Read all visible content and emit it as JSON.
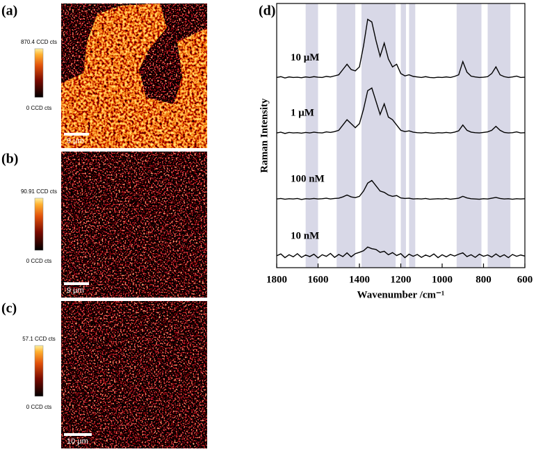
{
  "chart_data": {
    "type": "line",
    "panel_label": "(d)",
    "x_label": "Wavenumber /cm⁻¹",
    "y_label": "Raman Intensity",
    "xlim": [
      1800,
      600
    ],
    "xticks": [
      1800,
      1600,
      1400,
      1200,
      1000,
      800,
      600
    ],
    "ylim": [
      0,
      100
    ],
    "bands": [
      [
        1660,
        1600
      ],
      [
        1510,
        1420
      ],
      [
        1390,
        1225
      ],
      [
        1200,
        1175
      ],
      [
        1160,
        1130
      ],
      [
        930,
        810
      ],
      [
        780,
        670
      ]
    ],
    "band_color": "#d8d8e7",
    "x": [
      1800,
      1780,
      1760,
      1740,
      1720,
      1700,
      1680,
      1660,
      1640,
      1620,
      1600,
      1580,
      1560,
      1540,
      1520,
      1500,
      1480,
      1460,
      1440,
      1420,
      1400,
      1380,
      1360,
      1340,
      1320,
      1300,
      1280,
      1260,
      1240,
      1220,
      1200,
      1180,
      1160,
      1140,
      1120,
      1100,
      1080,
      1060,
      1040,
      1020,
      1000,
      980,
      960,
      940,
      920,
      900,
      880,
      860,
      840,
      820,
      800,
      780,
      760,
      740,
      720,
      700,
      680,
      660,
      640,
      620,
      600
    ],
    "series": [
      {
        "name": "10 μM",
        "color": "#000000",
        "values": [
          72,
          72.3,
          71.8,
          72.2,
          72,
          72.1,
          71.9,
          72.2,
          72,
          72.3,
          72.1,
          72,
          72.4,
          72.2,
          72.6,
          73,
          75,
          77,
          75,
          74.5,
          76,
          84,
          94,
          93,
          86,
          80,
          85,
          79,
          76,
          77,
          73.5,
          72.6,
          73,
          72.4,
          72.2,
          72,
          72.3,
          72,
          71.9,
          72.1,
          72,
          72.2,
          72,
          72.4,
          73,
          78,
          74,
          72.5,
          72.2,
          72,
          72.1,
          72.3,
          73.5,
          76,
          73,
          72.3,
          72,
          72.2,
          72.5,
          72,
          72.1
        ]
      },
      {
        "name": "1 μM",
        "color": "#000000",
        "values": [
          51,
          51.3,
          50.8,
          51.2,
          51,
          51.1,
          50.9,
          51.2,
          51,
          51.3,
          51.1,
          51,
          51.4,
          51.2,
          51.5,
          52,
          54,
          56,
          54.5,
          53,
          54.5,
          60,
          67,
          68,
          63,
          58,
          62,
          57,
          56,
          54,
          52,
          51.5,
          51.8,
          51.3,
          51.1,
          51,
          51.2,
          51,
          50.9,
          51.1,
          51,
          51.2,
          51,
          51.3,
          51.8,
          54,
          52,
          51.3,
          51.1,
          51,
          51.2,
          51.4,
          52,
          53.5,
          52,
          51.2,
          51,
          51.1,
          51.4,
          51,
          51.1
        ]
      },
      {
        "name": "100 nM",
        "color": "#000000",
        "values": [
          26,
          26.2,
          25.9,
          26.1,
          26,
          26.2,
          25.8,
          26.1,
          26,
          26.2,
          26,
          26.1,
          26.3,
          26,
          26.2,
          26.3,
          26.8,
          27.5,
          26.8,
          26.5,
          27,
          29,
          32,
          33,
          31,
          29,
          28.5,
          27.5,
          27,
          27.3,
          26.4,
          26.2,
          26.3,
          26,
          26.1,
          26,
          26.2,
          25.9,
          26,
          26.1,
          26,
          26.2,
          25.9,
          26.1,
          26.3,
          27,
          26.4,
          26.1,
          26,
          25.9,
          26.1,
          26,
          26.3,
          26.6,
          26.2,
          26,
          26.1,
          25.9,
          26.1,
          26,
          26.1
        ]
      },
      {
        "name": "10 nM",
        "color": "#000000",
        "values": [
          4.5,
          5.2,
          3.8,
          4.9,
          4.1,
          5.3,
          3.9,
          4.8,
          4.2,
          5.1,
          3.7,
          4.9,
          4.3,
          5.4,
          3.9,
          5,
          4.2,
          5.6,
          4.1,
          5.3,
          5.8,
          6.4,
          7.8,
          7.2,
          6.9,
          5.8,
          6.2,
          4.9,
          5.7,
          4.6,
          5.3,
          3.8,
          5.1,
          4.3,
          5,
          3.9,
          4.8,
          4.2,
          5.2,
          3.8,
          4.9,
          4.1,
          5,
          4.4,
          5.1,
          5.6,
          4.2,
          4.9,
          3.9,
          5.1,
          4.3,
          4.8,
          4,
          5.2,
          4.1,
          4.9,
          3.8,
          5,
          4.3,
          4.8,
          4.4
        ]
      }
    ]
  },
  "maps": [
    {
      "label": "(a)",
      "colorbar_max": "870.4 CCD cts",
      "colorbar_min": "0 CCD cts",
      "scale_bar": "9 μm"
    },
    {
      "label": "(b)",
      "colorbar_max": "90.91 CCD cts",
      "colorbar_min": "0 CCD cts",
      "scale_bar": "9 μm"
    },
    {
      "label": "(c)",
      "colorbar_max": "57.1 CCD cts",
      "colorbar_min": "0 CCD cts",
      "scale_bar": "10 μm"
    }
  ]
}
